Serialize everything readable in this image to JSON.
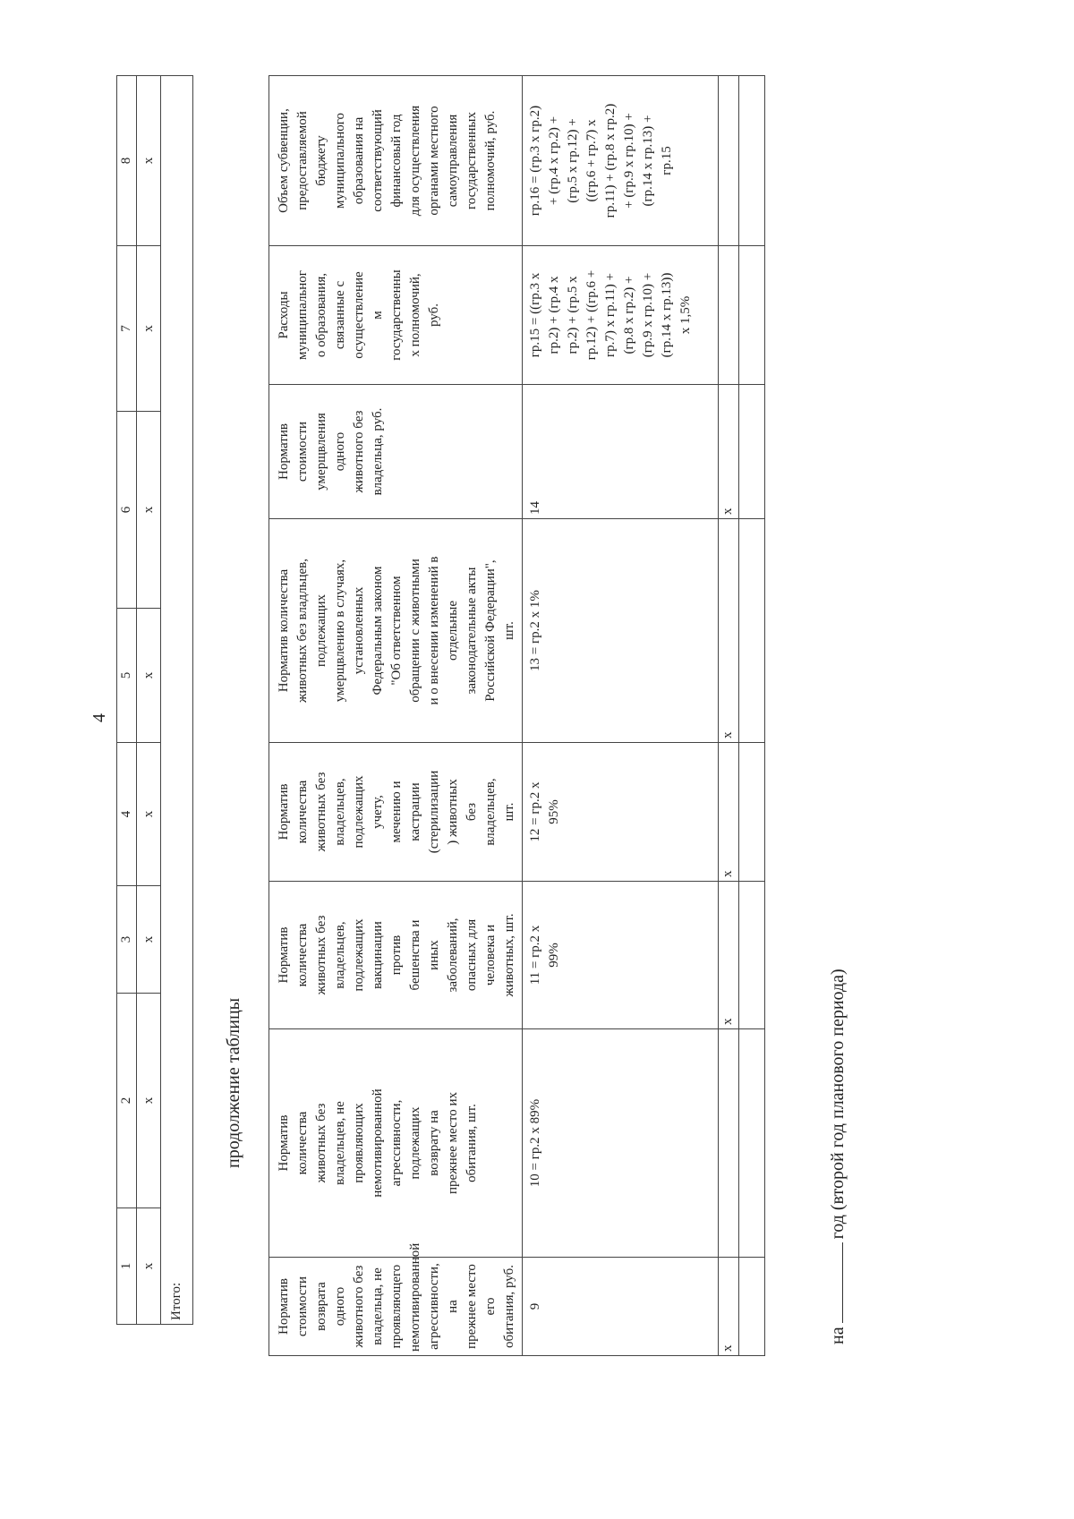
{
  "page_number": "4",
  "table1": {
    "headers": [
      "1",
      "2",
      "3",
      "4",
      "5",
      "6",
      "7",
      "8"
    ],
    "row_x": [
      "х",
      "х",
      "х",
      "х",
      "х",
      "х",
      "х",
      "х"
    ],
    "total_label": "Итого:"
  },
  "continuation_label": "продолжение таблицы",
  "table2": {
    "headers": [
      "Норматив\nстоимости\nвозврата одного\nживотного без\nвладельца, не\nпроявляющего\nнемотивированной\nагрессивности, на\nпрежнее место его\nобитания, руб.",
      "Норматив\nколичества\nживотных без\nвладельцев, не\nпроявляющих\nнемотивированной\nагрессивности,\nподлежащих\nвозврату на\nпрежнее место их\nобитания, шт.",
      "Норматив\nколичества\nживотных без\nвладельцев,\nподлежащих\nвакцинации\nпротив\nбешенства и\nиных\nзаболеваний,\nопасных для\nчеловека и\nживотных, шт.",
      "Норматив\nколичества\nживотных без\nвладельцев,\nподлежащих\nучету,\nмечению и\nкастрации\n(стерилизации\n) животных\nбез\nвладельцев,\nшт.",
      "Норматив количества\nживотных без владльцев,\nподлежащих\nумерщвлению в случаях,\nустановленных\nФедеральным законом\n\"Об ответственном\nобращении с животными\nи о внесении изменений в\nотдельные\nзаконодательные акты\nРоссийской Федерации\",\nшт.",
      "Норматив\nстоимости\nумерщвления\nодного\nживотного без\nвладельца, руб.",
      "Расходы\nмуниципальног\nо образования,\nсвязанные с\nосуществление\nм\nгосударственны\nх полномочий,\nруб.",
      "Объем субвенции,\nпредоставляемой\nбюджету\nмуниципального\nобразования на\nсоответствующий\nфинансовый год\nдля осуществления\nорганами местного\nсамоуправления\nгосударственных\nполномочий, руб."
    ],
    "formulas": [
      "9",
      "10 = гр.2 х 89%",
      "11 = гр.2 х\n99%",
      "12 = гр.2 х\n95%",
      "13 = гр.2 х 1%",
      "14",
      "гр.15 = ((гр.3 х\nгр.2) + (гр.4 х\nгр.2) + (гр.5 х\nгр.12) + ((гр.6 +\nгр.7) х гр.11) +\n(гр.8 х гр.2) +\n(гр.9 х гр.10) +\n(гр.14 х гр.13))\nх 1,5%",
      "гр.16 = (гр.3 х гр.2)\n+ (гр.4 х гр.2) +\n(гр.5 х гр.12) +\n((гр.6 + гр.7) х\nгр.11) + (гр.8 х гр.2)\n+ (гр.9 х гр.10) +\n(гр.14 х  гр.13) +\nгр.15"
    ],
    "row_x": [
      "х",
      "",
      "х",
      "х",
      "х",
      "х",
      "",
      ""
    ]
  },
  "footer": {
    "prefix": "на",
    "text": "год (второй год планового периода)"
  }
}
